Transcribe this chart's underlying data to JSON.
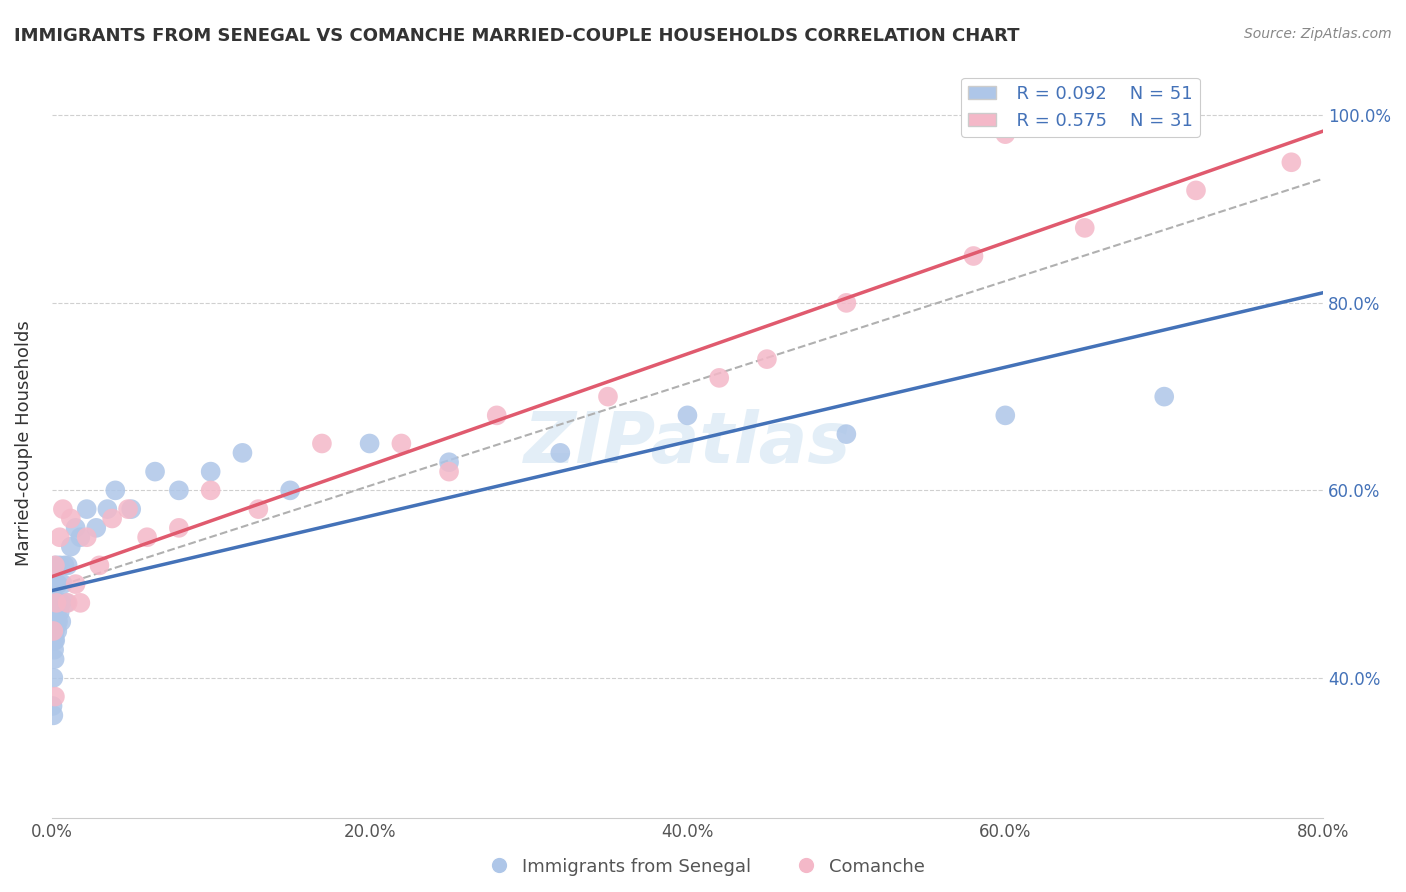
{
  "title": "IMMIGRANTS FROM SENEGAL VS COMANCHE MARRIED-COUPLE HOUSEHOLDS CORRELATION CHART",
  "source": "Source: ZipAtlas.com",
  "ylabel": "Married-couple Households",
  "xlim": [
    0.0,
    0.8
  ],
  "ylim": [
    0.25,
    1.05
  ],
  "x_tick_labels": [
    "0.0%",
    "20.0%",
    "40.0%",
    "60.0%",
    "80.0%"
  ],
  "x_tick_values": [
    0.0,
    0.2,
    0.4,
    0.6,
    0.8
  ],
  "y_tick_labels": [
    "40.0%",
    "60.0%",
    "80.0%",
    "100.0%"
  ],
  "y_tick_values": [
    0.4,
    0.6,
    0.8,
    1.0
  ],
  "legend_blue_r": "R = 0.092",
  "legend_blue_n": "N = 51",
  "legend_pink_r": "R = 0.575",
  "legend_pink_n": "N = 31",
  "blue_x": [
    0.0005,
    0.0008,
    0.001,
    0.001,
    0.0012,
    0.0013,
    0.0015,
    0.0015,
    0.0017,
    0.0018,
    0.002,
    0.002,
    0.002,
    0.0022,
    0.0025,
    0.003,
    0.003,
    0.003,
    0.0032,
    0.0035,
    0.004,
    0.004,
    0.0042,
    0.005,
    0.005,
    0.006,
    0.006,
    0.007,
    0.008,
    0.009,
    0.01,
    0.012,
    0.015,
    0.018,
    0.022,
    0.028,
    0.035,
    0.04,
    0.05,
    0.065,
    0.08,
    0.1,
    0.12,
    0.15,
    0.2,
    0.25,
    0.32,
    0.4,
    0.5,
    0.6,
    0.7
  ],
  "blue_y": [
    0.37,
    0.44,
    0.36,
    0.4,
    0.46,
    0.47,
    0.43,
    0.5,
    0.44,
    0.42,
    0.46,
    0.48,
    0.45,
    0.44,
    0.52,
    0.46,
    0.48,
    0.5,
    0.47,
    0.45,
    0.46,
    0.5,
    0.48,
    0.47,
    0.52,
    0.48,
    0.46,
    0.5,
    0.52,
    0.48,
    0.52,
    0.54,
    0.56,
    0.55,
    0.58,
    0.56,
    0.58,
    0.6,
    0.58,
    0.62,
    0.6,
    0.62,
    0.64,
    0.6,
    0.65,
    0.63,
    0.64,
    0.68,
    0.66,
    0.68,
    0.7
  ],
  "pink_x": [
    0.001,
    0.002,
    0.003,
    0.005,
    0.007,
    0.01,
    0.012,
    0.015,
    0.018,
    0.022,
    0.03,
    0.038,
    0.048,
    0.06,
    0.08,
    0.1,
    0.13,
    0.17,
    0.22,
    0.28,
    0.35,
    0.42,
    0.5,
    0.58,
    0.65,
    0.72,
    0.78,
    0.6,
    0.45,
    0.25,
    0.002
  ],
  "pink_y": [
    0.45,
    0.52,
    0.48,
    0.55,
    0.58,
    0.48,
    0.57,
    0.5,
    0.48,
    0.55,
    0.52,
    0.57,
    0.58,
    0.55,
    0.56,
    0.6,
    0.58,
    0.65,
    0.65,
    0.68,
    0.7,
    0.72,
    0.8,
    0.85,
    0.88,
    0.92,
    0.95,
    0.98,
    0.74,
    0.62,
    0.38
  ],
  "blue_color": "#aec6e8",
  "pink_color": "#f4b8c8",
  "blue_line_color": "#4472b8",
  "pink_line_color": "#e05a6e",
  "dashed_line_color": "#b0b0b0",
  "watermark": "ZIPatlas",
  "background_color": "#ffffff",
  "grid_color": "#d0d0d0"
}
